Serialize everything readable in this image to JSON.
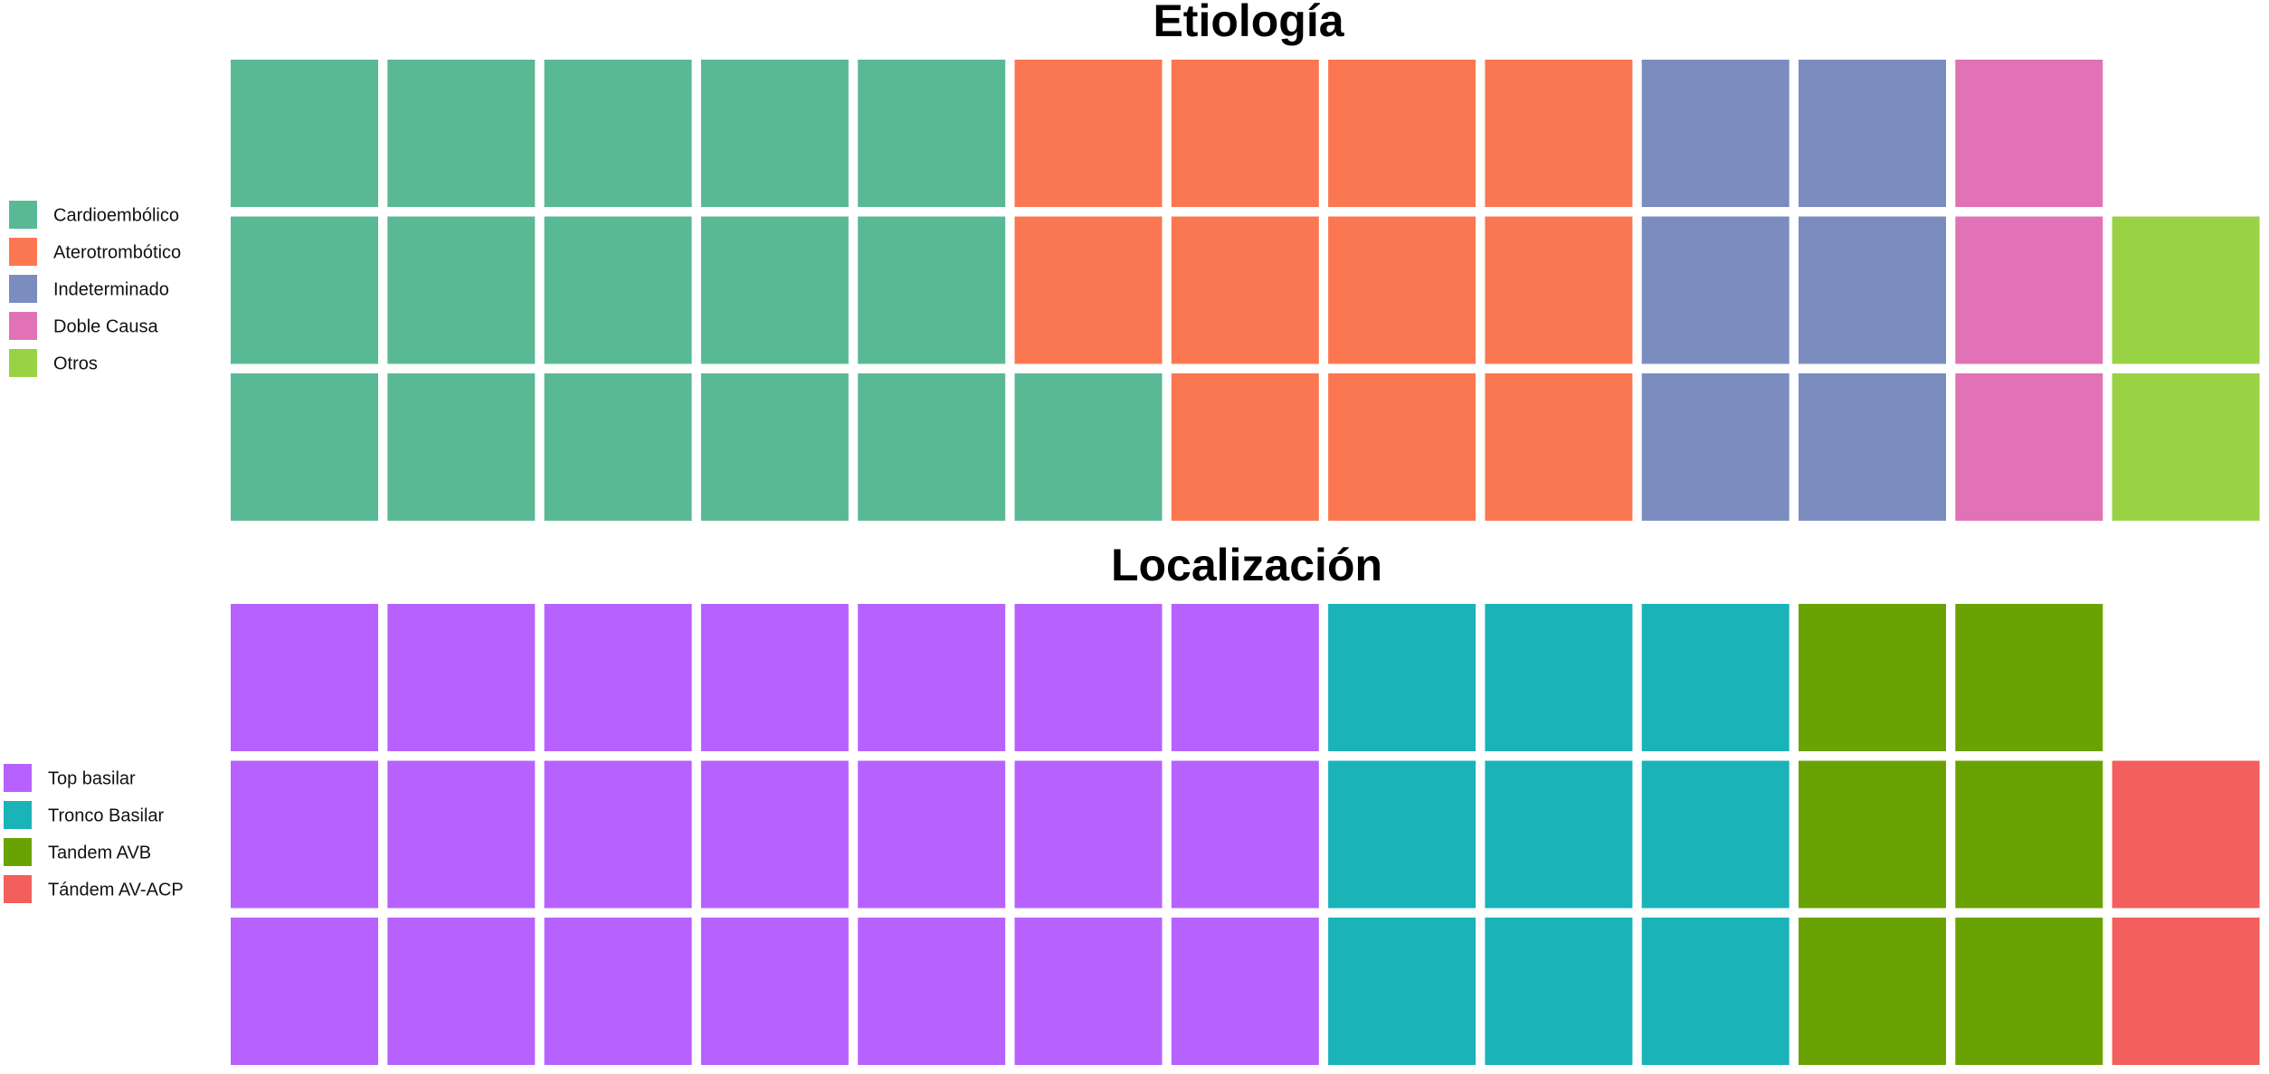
{
  "chart_data": [
    {
      "type": "waffle",
      "title": "Etiología",
      "rows": 3,
      "fill_order": "column-wise, bottom to top",
      "legend_position": "left",
      "categories": [
        "Cardioembólico",
        "Aterotrombótico",
        "Indeterminado",
        "Doble Causa",
        "Otros"
      ],
      "values": [
        16,
        11,
        6,
        3,
        2
      ],
      "colors": [
        "#5ab995",
        "#fa7752",
        "#7b8dbf",
        "#e072b5",
        "#99d343"
      ]
    },
    {
      "type": "waffle",
      "title": "Localización",
      "rows": 3,
      "fill_order": "column-wise, bottom to top",
      "legend_position": "left",
      "categories": [
        "Top basilar",
        "Tronco Basilar",
        "Tandem AVB",
        "Tándem AV-ACP"
      ],
      "values": [
        21,
        9,
        6,
        2
      ],
      "colors": [
        "#b762fe",
        "#1ab3b8",
        "#6ba203",
        "#f25f5c"
      ]
    }
  ]
}
